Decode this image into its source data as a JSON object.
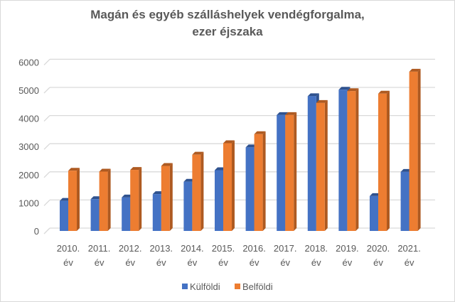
{
  "chart_data": {
    "type": "bar",
    "title_lines": [
      "Magán és egyéb szálláshelyek vendégforgalma,",
      "ezer éjszaka"
    ],
    "categories": [
      [
        "2010.",
        "év"
      ],
      [
        "2011.",
        "év"
      ],
      [
        "2012.",
        "év"
      ],
      [
        "2013.",
        "év"
      ],
      [
        "2014.",
        "év"
      ],
      [
        "2015.",
        "év"
      ],
      [
        "2016.",
        "év"
      ],
      [
        "2017.",
        "év"
      ],
      [
        "2018.",
        "év"
      ],
      [
        "2019.",
        "év"
      ],
      [
        "2020.",
        "év"
      ],
      [
        "2021.",
        "év"
      ]
    ],
    "ylim": [
      0,
      6000
    ],
    "yticks": [
      0,
      1000,
      2000,
      3000,
      4000,
      5000,
      6000
    ],
    "grid": true,
    "legend_position": "bottom",
    "series": [
      {
        "name": "Külföldi",
        "color": "#4472c4",
        "side_color": "#2f528f",
        "values": [
          1070,
          1130,
          1190,
          1310,
          1750,
          2160,
          2970,
          4120,
          4790,
          5020,
          1240,
          2100
        ]
      },
      {
        "name": "Belföldi",
        "color": "#ed7d31",
        "side_color": "#ae5a21",
        "values": [
          2140,
          2110,
          2170,
          2310,
          2710,
          3120,
          3440,
          4120,
          4550,
          4970,
          4880,
          5660
        ]
      }
    ]
  }
}
